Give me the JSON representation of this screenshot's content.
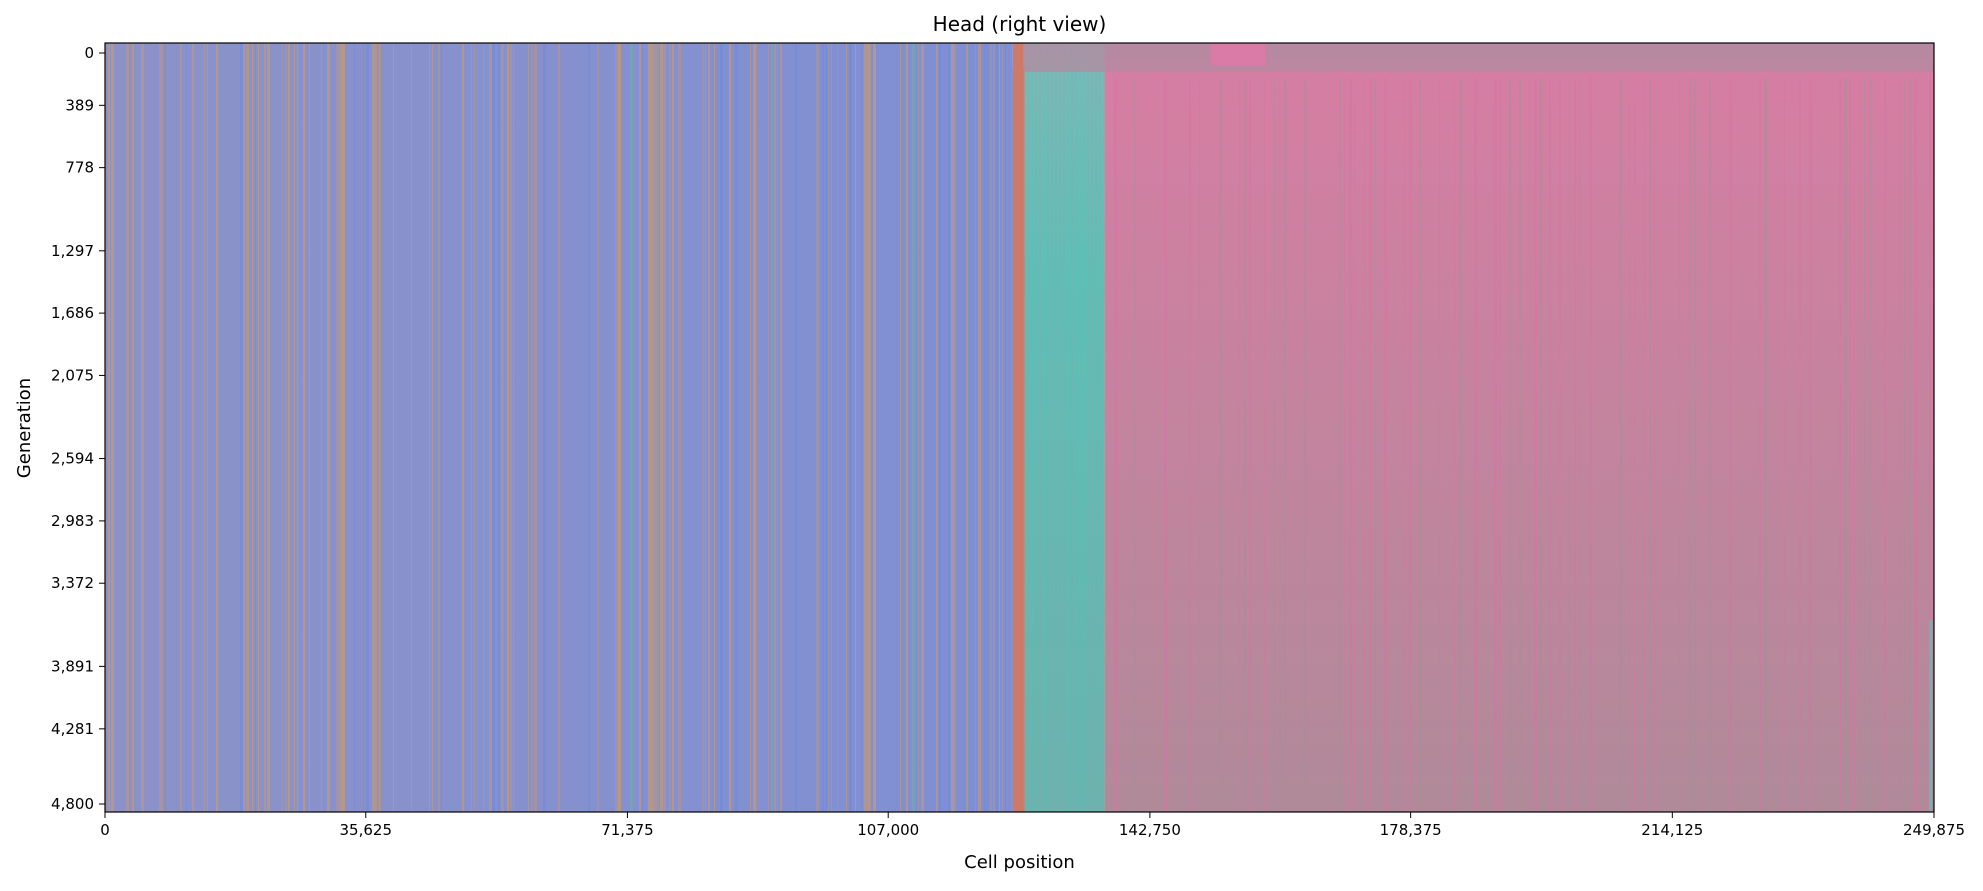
{
  "chart_data": {
    "type": "heatmap",
    "title": "Head (right view)",
    "xlabel": "Cell position",
    "ylabel": "Generation",
    "xlim": [
      0,
      249875
    ],
    "ylim": [
      0,
      4800
    ],
    "y_inverted": true,
    "grid": false,
    "x_ticks": [
      0,
      35625,
      71375,
      107000,
      142750,
      178375,
      214125,
      249875
    ],
    "x_tick_labels": [
      "0",
      "35,625",
      "71,375",
      "107,000",
      "142,750",
      "178,375",
      "214,125",
      "249,875"
    ],
    "y_ticks": [
      0,
      389,
      778,
      1297,
      1686,
      2075,
      2594,
      2983,
      3372,
      3891,
      4281,
      4800
    ],
    "y_tick_labels": [
      "0",
      "389",
      "778",
      "1,297",
      "1,686",
      "2,075",
      "2,594",
      "2,983",
      "3,372",
      "3,891",
      "4,281",
      "4,800"
    ],
    "regions": [
      {
        "x_start": 0,
        "x_end": 124000,
        "dominant_color": "#7f8fd4",
        "stripe_color": "#c79a72",
        "description_color_mix": "blue-orange"
      },
      {
        "x_start": 124000,
        "x_end": 125500,
        "dominant_color": "#cc7a6a"
      },
      {
        "x_start": 125500,
        "x_end": 136500,
        "dominant_color": "#63bab4"
      },
      {
        "x_start": 136500,
        "x_end": 249875,
        "dominant_color": "#c38597",
        "stripe_color": "#d873a2"
      }
    ]
  }
}
